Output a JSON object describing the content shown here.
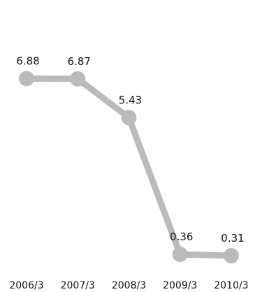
{
  "chart_data": {
    "type": "line",
    "categories": [
      "2006/3",
      "2007/3",
      "2008/3",
      "2009/3",
      "2010/3"
    ],
    "series": [
      {
        "values": [
          6.88,
          6.87,
          5.43,
          0.36,
          0.31
        ],
        "color": "#bbbbbb"
      }
    ],
    "data_labels": [
      "6.88",
      "6.87",
      "5.43",
      "0.36",
      "0.31"
    ],
    "ylim": [
      0,
      9
    ],
    "grid": false,
    "axes_visible": false,
    "title": "",
    "xlabel": "",
    "ylabel": ""
  }
}
